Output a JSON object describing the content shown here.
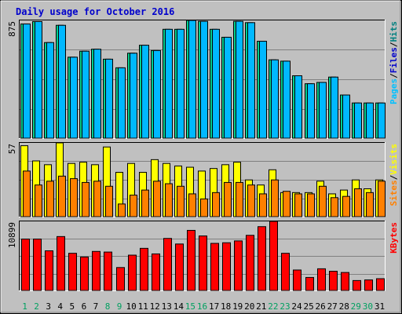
{
  "chart_data": {
    "type": "bar",
    "title": "Daily usage for October 2016",
    "categories": [
      "1",
      "2",
      "3",
      "4",
      "5",
      "6",
      "7",
      "8",
      "9",
      "10",
      "11",
      "12",
      "13",
      "14",
      "15",
      "16",
      "17",
      "18",
      "19",
      "20",
      "21",
      "22",
      "23",
      "24",
      "25",
      "26",
      "27",
      "28",
      "29",
      "30",
      "31"
    ],
    "weekend_days": [
      1,
      2,
      8,
      9,
      15,
      16,
      22,
      23,
      29,
      30
    ],
    "panels": [
      {
        "id": "hits",
        "ymax": 875,
        "ymax_label": "875",
        "legend": [
          {
            "text": "Pages",
            "color": "#00c0ff"
          },
          {
            "text": "Files",
            "color": "#0000cc"
          },
          {
            "text": "Hits",
            "color": "#008080"
          }
        ],
        "series": [
          {
            "name": "Hits",
            "color": "#00d090",
            "values": [
              860,
              878,
              720,
              850,
              610,
              655,
              670,
              595,
              530,
              640,
              700,
              660,
              820,
              820,
              935,
              880,
              820,
              760,
              880,
              870,
              730,
              590,
              580,
              470,
              410,
              420,
              460,
              325,
              265,
              265,
              265
            ]
          },
          {
            "name": "Files",
            "color": "#00b8ff",
            "values": [
              860,
              878,
              720,
              850,
              610,
              655,
              670,
              595,
              530,
              640,
              700,
              660,
              820,
              820,
              935,
              880,
              820,
              760,
              880,
              870,
              730,
              590,
              580,
              470,
              410,
              420,
              460,
              325,
              265,
              265,
              265
            ]
          }
        ]
      },
      {
        "id": "visits",
        "ymax": 57,
        "ymax_label": "57",
        "legend": [
          {
            "text": "Sites",
            "color": "#ff8000"
          },
          {
            "text": "Visits",
            "color": "#ffff00"
          }
        ],
        "series": [
          {
            "name": "Visits",
            "color": "#ffff00",
            "values": [
              56,
              44,
              41,
              60,
              42,
              43,
              41,
              55,
              35,
              42,
              35,
              45,
              42,
              40,
              39,
              36,
              38,
              41,
              43,
              29,
              25,
              37,
              19,
              19,
              19,
              28,
              18,
              21,
              29,
              22,
              29
            ]
          },
          {
            "name": "Sites",
            "color": "#ff8000",
            "values": [
              36,
              25,
              28,
              32,
              30,
              27,
              28,
              24,
              10,
              17,
              21,
              28,
              26,
              24,
              18,
              14,
              19,
              27,
              27,
              25,
              18,
              29,
              20,
              18,
              18,
              24,
              15,
              16,
              22,
              19,
              28
            ]
          }
        ]
      },
      {
        "id": "kbytes",
        "ymax": 10899,
        "ymax_label": "10899",
        "legend": [
          {
            "text": "KBytes",
            "color": "#ff0000"
          }
        ],
        "series": [
          {
            "name": "KBytes",
            "color": "#ff0000",
            "values": [
              8300,
              8300,
              6400,
              8700,
              6000,
              5400,
              6300,
              6200,
              3700,
              5700,
              6800,
              5900,
              8400,
              7500,
              9700,
              8800,
              7600,
              7700,
              8000,
              8900,
              10300,
              11400,
              6000,
              3300,
              2100,
              3500,
              3100,
              2900,
              1600,
              1700,
              1900
            ]
          }
        ]
      }
    ]
  }
}
